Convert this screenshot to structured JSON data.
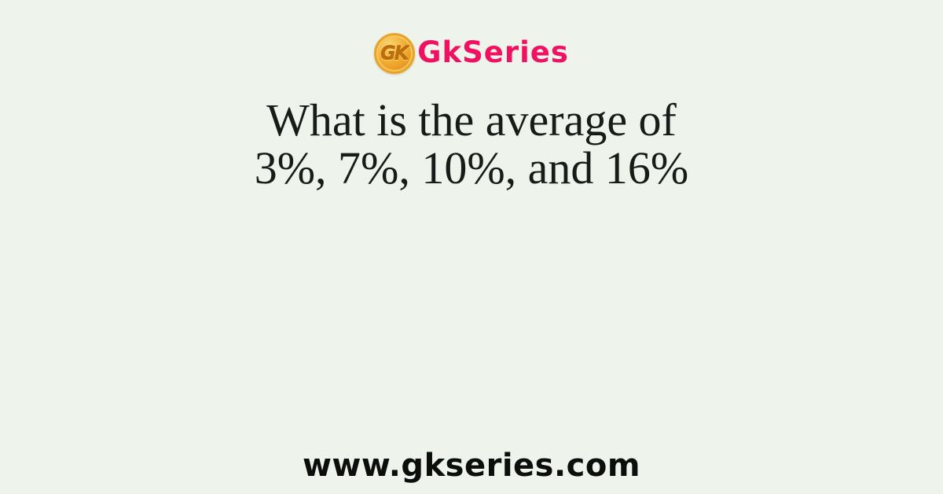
{
  "page": {
    "background_color": "#eef3ec"
  },
  "logo": {
    "coin_text": "GK",
    "brand_text": "GkSeries",
    "brand_color": "#f11163",
    "coin_gold_color": "#f2ae35",
    "coin_letter_color": "#bd6f0c"
  },
  "question": {
    "line1": "What is the average of",
    "line2": "3%, 7%, 10%, and 16%",
    "text_color": "#181c18"
  },
  "footer": {
    "website": "www.gkseries.com",
    "text_color": "#0c0e0c"
  }
}
